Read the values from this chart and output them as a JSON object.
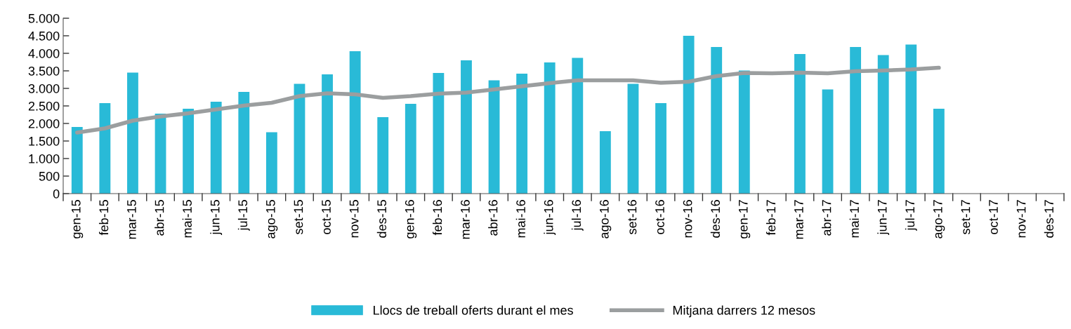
{
  "chart_data": {
    "type": "bar",
    "categories": [
      "gen-15",
      "feb-15",
      "mar-15",
      "abr-15",
      "mai-15",
      "jun-15",
      "jul-15",
      "ago-15",
      "set-15",
      "oct-15",
      "nov-15",
      "des-15",
      "gen-16",
      "feb-16",
      "mar-16",
      "abr-16",
      "mai-16",
      "jun-16",
      "jul-16",
      "ago-16",
      "set-16",
      "oct-16",
      "nov-16",
      "des-16",
      "gen-17",
      "feb-17",
      "mar-17",
      "abr-17",
      "mai-17",
      "jun-17",
      "jul-17",
      "ago-17",
      "set-17",
      "oct-17",
      "nov-17",
      "des-17"
    ],
    "series": [
      {
        "name": "Llocs de treball oferts durant el mes",
        "color": "#29bad7",
        "values": [
          1900,
          2580,
          3450,
          2280,
          2420,
          2620,
          2900,
          1750,
          3130,
          3400,
          4060,
          2180,
          2560,
          3440,
          3800,
          3230,
          3420,
          3740,
          3870,
          1780,
          3130,
          2580,
          4500,
          4180,
          3510,
          null,
          3980,
          2970,
          4180,
          3950,
          4250,
          2420,
          null,
          null,
          null,
          null
        ]
      },
      {
        "name": "Mitjana darrers 12 mesos",
        "type": "line",
        "color": "#9b9e9f",
        "values": [
          1740,
          1860,
          2080,
          2200,
          2290,
          2400,
          2510,
          2590,
          2780,
          2860,
          2830,
          2730,
          2780,
          2850,
          2880,
          2970,
          3060,
          3150,
          3230,
          3230,
          3230,
          3160,
          3190,
          3350,
          3440,
          3430,
          3450,
          3430,
          3490,
          3510,
          3540,
          3590,
          null,
          null,
          null,
          null
        ]
      }
    ],
    "ylim": [
      0,
      5000
    ],
    "yticks": [
      {
        "value": 0,
        "label": "0"
      },
      {
        "value": 500,
        "label": "500"
      },
      {
        "value": 1000,
        "label": "1.000"
      },
      {
        "value": 1500,
        "label": "1.500"
      },
      {
        "value": 2000,
        "label": "2.000"
      },
      {
        "value": 2500,
        "label": "2.500"
      },
      {
        "value": 3000,
        "label": "3.000"
      },
      {
        "value": 3500,
        "label": "3.500"
      },
      {
        "value": 4000,
        "label": "4.000"
      },
      {
        "value": 4500,
        "label": "4.500"
      },
      {
        "value": 5000,
        "label": "5.000"
      }
    ],
    "grid": false,
    "legend": "bottom",
    "marker": "none"
  }
}
